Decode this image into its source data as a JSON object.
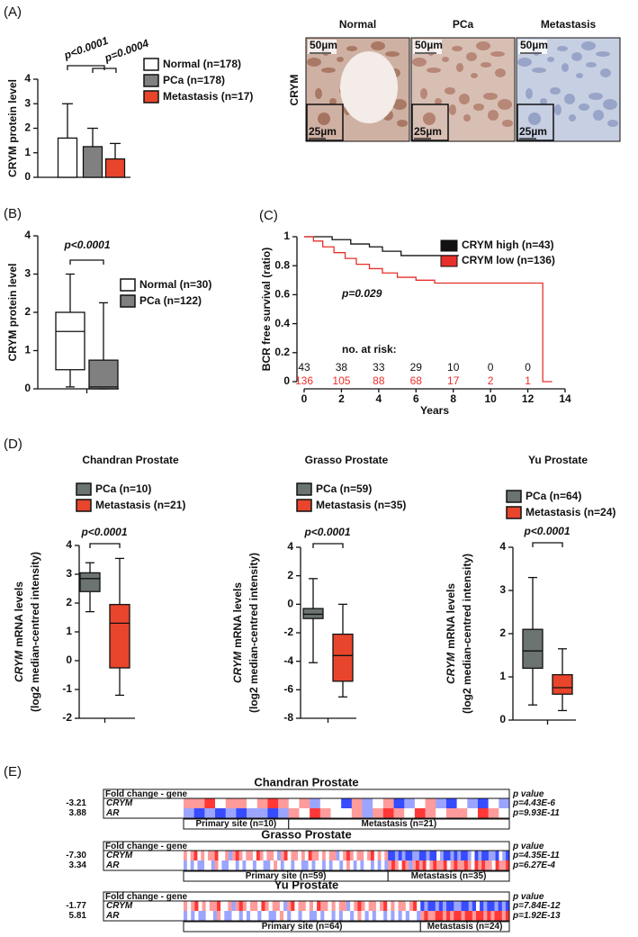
{
  "panel_labels": [
    "(A)",
    "(B)",
    "(C)",
    "(D)",
    "(E)"
  ],
  "chart_data": [
    {
      "type": "bar",
      "ylabel": "CRYM protein level",
      "categories": [
        "Normal (n=178)",
        "PCa (n=178)",
        "Metastasis (n=17)"
      ],
      "values": [
        1.6,
        1.25,
        0.75
      ],
      "errors": [
        1.4,
        0.75,
        0.63
      ],
      "colors": [
        "#ffffff",
        "#808080",
        "#e8452c"
      ],
      "ylim": [
        0,
        4
      ],
      "yticks": [
        0,
        1,
        2,
        3,
        4
      ],
      "annotations": [
        "p<0.0001",
        "p=0.0004"
      ]
    },
    {
      "type": "box",
      "ylabel": "CRYM protein level",
      "categories": [
        "Normal (n=30)",
        "PCa (n=122)"
      ],
      "colors": [
        "#ffffff",
        "#808080"
      ],
      "min": [
        0.05,
        0
      ],
      "q1": [
        0.5,
        0
      ],
      "median": [
        1.5,
        0.05
      ],
      "q3": [
        2.0,
        0.75
      ],
      "max": [
        3.0,
        2.25
      ],
      "ylim": [
        0,
        4
      ],
      "yticks": [
        0,
        1,
        2,
        3,
        4
      ],
      "annotation": "p<0.0001"
    },
    {
      "type": "km",
      "ylabel": "BCR free survival (ratio)",
      "xlabel": "Years",
      "series": [
        {
          "name": "CRYM high (n=43)",
          "color": "#111111",
          "x": [
            0,
            1.5,
            1.5,
            2.5,
            2.5,
            3.5,
            3.5,
            4.2,
            4.2,
            5.2,
            5.2,
            8.3
          ],
          "values": [
            1,
            1,
            0.98,
            0.98,
            0.95,
            0.95,
            0.93,
            0.93,
            0.9,
            0.9,
            0.87,
            0.87
          ]
        },
        {
          "name": "CRYM low (n=136)",
          "color": "#e8302a",
          "x": [
            0,
            0.5,
            0.5,
            1,
            1,
            1.6,
            1.6,
            2.2,
            2.2,
            2.8,
            2.8,
            3.5,
            3.5,
            4.2,
            4.2,
            5,
            5,
            6,
            6,
            7,
            7,
            12.8,
            12.8,
            13.3
          ],
          "values": [
            1,
            1,
            0.97,
            0.97,
            0.93,
            0.93,
            0.89,
            0.89,
            0.85,
            0.85,
            0.81,
            0.81,
            0.78,
            0.78,
            0.75,
            0.75,
            0.72,
            0.72,
            0.7,
            0.7,
            0.68,
            0.68,
            0,
            0
          ]
        }
      ],
      "xlim": [
        0,
        14
      ],
      "xticks": [
        0,
        2,
        4,
        6,
        8,
        10,
        12,
        14
      ],
      "ylim": [
        0,
        1
      ],
      "yticks": [
        0,
        0.2,
        0.4,
        0.6,
        0.8,
        1
      ],
      "annotation": "p=0.029",
      "risk_title": "no. at risk:",
      "risk": [
        [
          43,
          38,
          33,
          29,
          10,
          0,
          0
        ],
        [
          136,
          105,
          88,
          68,
          17,
          2,
          1
        ]
      ]
    },
    {
      "type": "box",
      "title": "Chandran Prostate",
      "ylabel_gene": "CRYM",
      "ylabel": "mRNA levels",
      "ylabel2": "(log2 median-centred intensity)",
      "categories": [
        "PCa (n=10)",
        "Metastasis (n=21)"
      ],
      "colors": [
        "#6b7470",
        "#e8452c"
      ],
      "min": [
        1.7,
        -1.2
      ],
      "q1": [
        2.4,
        -0.25
      ],
      "median": [
        2.85,
        1.3
      ],
      "q3": [
        3.05,
        1.95
      ],
      "max": [
        3.4,
        3.55
      ],
      "ylim": [
        -2,
        4
      ],
      "yticks": [
        -2,
        -1,
        0,
        1,
        2,
        3,
        4
      ],
      "annotation": "p<0.0001"
    },
    {
      "type": "box",
      "title": "Grasso Prostate",
      "ylabel_gene": "CRYM",
      "ylabel": "mRNA levels",
      "ylabel2": "(log2 median-centred intensity)",
      "categories": [
        "PCa (n=59)",
        "Metastasis (n=35)"
      ],
      "colors": [
        "#6b7470",
        "#e8452c"
      ],
      "min": [
        -4.1,
        -6.5
      ],
      "q1": [
        -1.0,
        -5.4
      ],
      "median": [
        -0.7,
        -3.6
      ],
      "q3": [
        -0.3,
        -2.1
      ],
      "max": [
        1.8,
        0
      ],
      "ylim": [
        -8,
        4
      ],
      "yticks": [
        -8,
        -6,
        -4,
        -2,
        0,
        2,
        4
      ],
      "annotation": "p<0.0001"
    },
    {
      "type": "box",
      "title": "Yu Prostate",
      "ylabel_gene": "CRYM",
      "ylabel": "mRNA levels",
      "ylabel2": "(log2 median-centred intensity)",
      "categories": [
        "PCa (n=64)",
        "Metastasis (n=24)"
      ],
      "colors": [
        "#6b7470",
        "#e8452c"
      ],
      "min": [
        0.35,
        0.22
      ],
      "q1": [
        1.2,
        0.6
      ],
      "median": [
        1.6,
        0.75
      ],
      "q3": [
        2.1,
        1.05
      ],
      "max": [
        3.3,
        1.65
      ],
      "ylim": [
        0,
        4
      ],
      "yticks": [
        0,
        1,
        2,
        3,
        4
      ],
      "annotation": "p<0.0001"
    }
  ],
  "histology": {
    "headers": [
      "Normal",
      "PCa",
      "Metastasis"
    ],
    "row_label": "CRYM",
    "scale_large": "50µm",
    "scale_small": "25µm"
  },
  "heatmaps": [
    {
      "title": "Chandran Prostate",
      "header": "Fold change - gene",
      "p_header": "p value",
      "groups": [
        "Primary site (n=10)",
        "Metastasis (n=21)"
      ],
      "rows": [
        {
          "fold_change": "-3.21",
          "gene": "CRYM",
          "p": "p=4.43E-6",
          "values": [
            [
              1,
              1,
              2,
              0,
              1,
              1,
              0,
              1,
              2,
              1
            ],
            [
              0,
              1,
              -1,
              0,
              0,
              -2,
              1,
              -1,
              0,
              1,
              -2,
              -1,
              0,
              1,
              -1,
              -2,
              0,
              -1,
              -2,
              0,
              -1
            ]
          ]
        },
        {
          "fold_change": "3.88",
          "gene": "AR",
          "p": "p=9.93E-11",
          "values": [
            [
              -1,
              -2,
              -1,
              -2,
              -1,
              -2,
              -1,
              -1,
              -2,
              -1
            ],
            [
              1,
              0,
              2,
              1,
              0,
              0,
              1,
              -1,
              1,
              2,
              1,
              0,
              2,
              1,
              0,
              1,
              1,
              0,
              2,
              1,
              0
            ]
          ]
        }
      ]
    },
    {
      "title": "Grasso Prostate",
      "header": "Fold change - gene",
      "p_header": "p value",
      "groups": [
        "Primary site (n=59)",
        "Metastasis (n=35)"
      ],
      "rows": [
        {
          "fold_change": "-7.30",
          "gene": "CRYM",
          "p": "p=4.35E-11",
          "values": [
            [
              1,
              0,
              1,
              2,
              0,
              1,
              0,
              1,
              1,
              2,
              0,
              0,
              1,
              -1,
              1,
              2,
              1,
              0,
              1,
              1,
              0,
              2,
              1,
              0,
              1,
              1,
              0,
              -1,
              1,
              2,
              0,
              1,
              1,
              0,
              1,
              0,
              2,
              1,
              1,
              0,
              1,
              0,
              1,
              1,
              -1,
              0,
              1,
              2,
              1,
              0,
              1,
              1,
              0,
              1,
              2,
              0,
              1,
              0,
              1
            ],
            [
              -2,
              -2,
              -1,
              -2,
              -1,
              -2,
              -2,
              -1,
              -1,
              -2,
              -2,
              -1,
              -2,
              -2,
              0,
              -1,
              -2,
              -2,
              -1,
              -2,
              -1,
              -2,
              -2,
              -1,
              0,
              -2,
              -1,
              -2,
              -2,
              -1,
              -1,
              -2,
              0,
              -1,
              -2
            ]
          ]
        },
        {
          "fold_change": "3.34",
          "gene": "AR",
          "p": "p=6.27E-4",
          "values": [
            [
              -1,
              0,
              -1,
              0,
              -1,
              -1,
              0,
              0,
              -1,
              1,
              0,
              -1,
              -1,
              0,
              0,
              -1,
              0,
              -1,
              0,
              0,
              -1,
              0,
              0,
              -1,
              -1,
              0,
              1,
              0,
              -1,
              0,
              0,
              -1,
              0,
              0,
              -1,
              -1,
              0,
              -1,
              0,
              0,
              -1,
              0,
              -1,
              0,
              0,
              -1,
              0,
              1,
              0,
              -1,
              0,
              -1,
              0,
              0,
              -1,
              0,
              -1,
              0,
              -1
            ],
            [
              1,
              2,
              1,
              0,
              2,
              1,
              -1,
              1,
              2,
              1,
              2,
              0,
              1,
              2,
              1,
              1,
              2,
              0,
              1,
              2,
              1,
              1,
              2,
              1,
              0,
              2,
              1,
              2,
              1,
              1,
              0,
              2,
              1,
              1,
              2
            ]
          ]
        }
      ]
    },
    {
      "title": "Yu Prostate",
      "header": "Fold change - gene",
      "p_header": "p value",
      "groups": [
        "Primary site (n=64)",
        "Metastasis (n=24)"
      ],
      "rows": [
        {
          "fold_change": "-1.77",
          "gene": "CRYM",
          "p": "p=7.84E-12",
          "values": [
            [
              1,
              0,
              1,
              2,
              0,
              1,
              0,
              1,
              1,
              2,
              0,
              0,
              1,
              -1,
              1,
              2,
              1,
              0,
              1,
              1,
              0,
              2,
              1,
              0,
              1,
              1,
              0,
              -1,
              1,
              2,
              0,
              1,
              1,
              0,
              1,
              0,
              2,
              1,
              1,
              0,
              1,
              0,
              1,
              1,
              -1,
              0,
              1,
              2,
              1,
              0,
              1,
              1,
              0,
              1,
              2,
              0,
              1,
              0,
              1,
              1,
              0,
              1,
              2,
              0
            ],
            [
              -2,
              -1,
              -2,
              -2,
              -1,
              -2,
              -1,
              -2,
              -2,
              -1,
              -1,
              -2,
              -2,
              -1,
              -2,
              0,
              -2,
              -1,
              -2,
              -2,
              -1,
              -2,
              -1,
              -2
            ]
          ]
        },
        {
          "fold_change": "5.81",
          "gene": "AR",
          "p": "p=1.92E-13",
          "values": [
            [
              -1,
              0,
              -1,
              0,
              -1,
              -1,
              0,
              0,
              -1,
              1,
              0,
              -1,
              -1,
              0,
              0,
              -1,
              0,
              -1,
              0,
              0,
              -1,
              0,
              0,
              -1,
              -1,
              0,
              1,
              0,
              -1,
              0,
              0,
              -1,
              0,
              0,
              -1,
              -1,
              0,
              -1,
              0,
              0,
              -1,
              0,
              -1,
              0,
              0,
              -1,
              0,
              1,
              0,
              -1,
              0,
              -1,
              0,
              0,
              -1,
              0,
              -1,
              0,
              -1,
              0,
              -1,
              0,
              0,
              -1
            ],
            [
              1,
              2,
              1,
              1,
              2,
              2,
              1,
              2,
              1,
              2,
              2,
              1,
              2,
              2,
              1,
              2,
              2,
              1,
              2,
              1,
              2,
              2,
              1,
              2
            ]
          ]
        }
      ]
    }
  ]
}
